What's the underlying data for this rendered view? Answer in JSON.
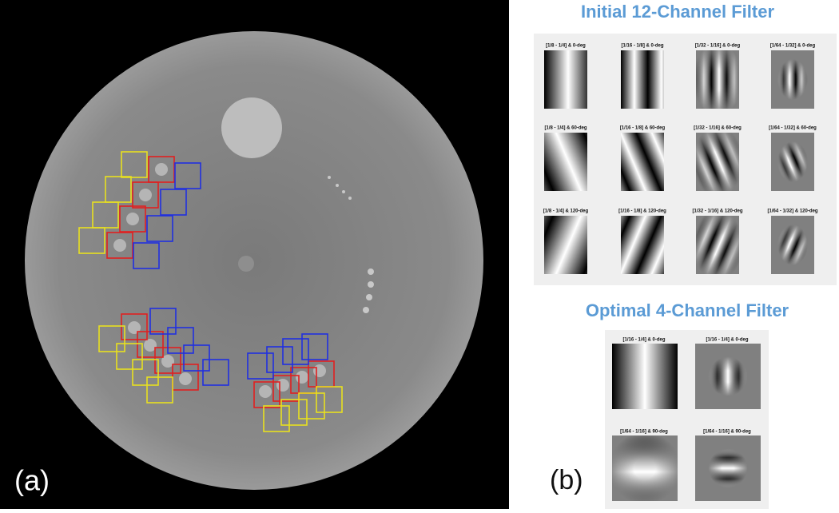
{
  "panel_a": {
    "label": "(a)"
  },
  "panel_b": {
    "label": "(b)"
  },
  "initial": {
    "title": "Initial 12-Channel Filter",
    "filters": [
      "[1/8 - 1/4] & 0-deg",
      "[1/16 - 1/8] & 0-deg",
      "[1/32 - 1/16] & 0-deg",
      "[1/64 - 1/32] & 0-deg",
      "[1/8 - 1/4] & 60-deg",
      "[1/16 - 1/8] & 60-deg",
      "[1/32 - 1/16] & 60-deg",
      "[1/64 - 1/32] & 60-deg",
      "[1/8 - 1/4] & 120-deg",
      "[1/16 - 1/8] & 120-deg",
      "[1/32 - 1/16] & 120-deg",
      "[1/64 - 1/32] & 120-deg"
    ]
  },
  "optimal": {
    "title": "Optimal 4-Channel Filter",
    "filters": [
      "[1/16 - 1/4] & 0-deg",
      "[1/16 - 1/4] & 0-deg",
      "[1/64 - 1/16] & 90-deg",
      "[1/64 - 1/16] & 90-deg"
    ]
  }
}
